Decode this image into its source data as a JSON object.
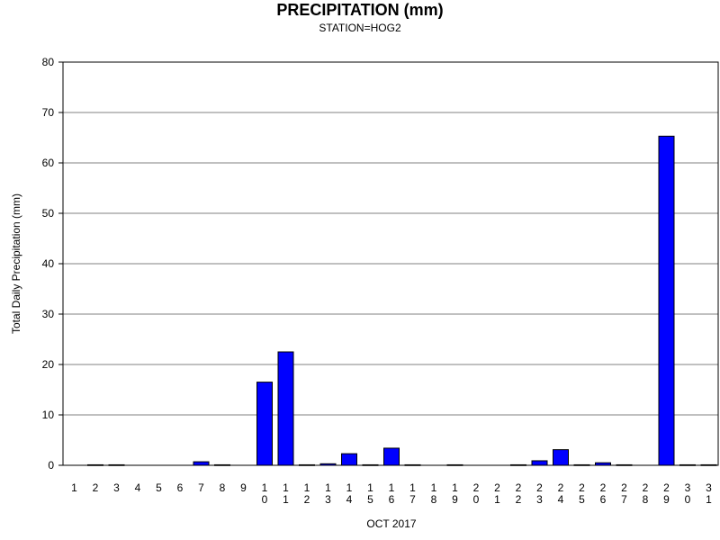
{
  "chart_data": {
    "type": "bar",
    "title": "PRECIPITATION (mm)",
    "subtitle": "STATION=HOG2",
    "xlabel": "OCT 2017",
    "ylabel": "Total Daily Precipitation (mm)",
    "ylim": [
      0,
      80
    ],
    "yticks": [
      0,
      10,
      20,
      30,
      40,
      50,
      60,
      70,
      80
    ],
    "grid": true,
    "bar_color": "#0000ff",
    "categories": [
      "1",
      "2",
      "3",
      "4",
      "5",
      "6",
      "7",
      "8",
      "9",
      "10",
      "11",
      "12",
      "13",
      "14",
      "15",
      "16",
      "17",
      "18",
      "19",
      "20",
      "21",
      "22",
      "23",
      "24",
      "25",
      "26",
      "27",
      "28",
      "29",
      "30",
      "31"
    ],
    "values": [
      0,
      0.1,
      0.1,
      0,
      0,
      0,
      0.7,
      0.1,
      0,
      16.5,
      22.5,
      0.1,
      0.3,
      2.3,
      0.1,
      3.4,
      0.1,
      0,
      0.1,
      0,
      0,
      0.1,
      0.9,
      3.1,
      0.1,
      0.5,
      0.1,
      0,
      65.3,
      0.1,
      0.1
    ]
  }
}
